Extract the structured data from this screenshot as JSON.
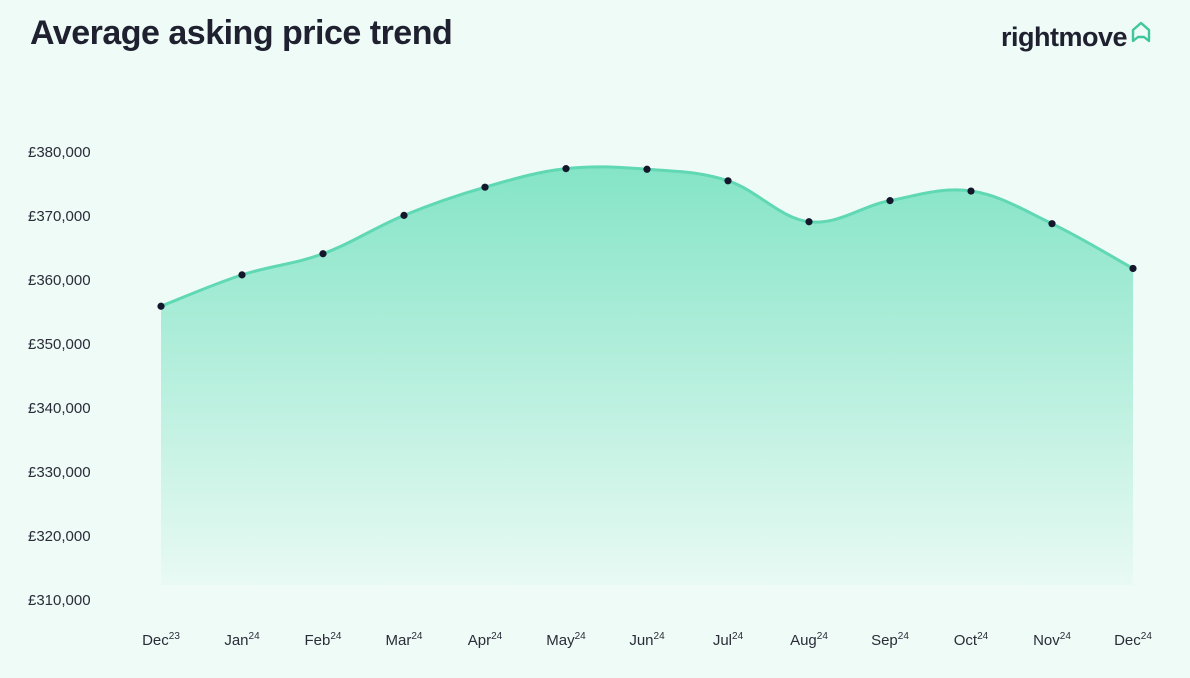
{
  "header": {
    "title": "Average asking price trend",
    "logo_text": "rightmove",
    "logo_icon": "house-outline-icon",
    "logo_color": "#3ec79a"
  },
  "chart_data": {
    "type": "area",
    "title": "Average asking price trend",
    "xlabel": "",
    "ylabel": "",
    "categories": [
      "Dec",
      "Jan",
      "Feb",
      "Mar",
      "Apr",
      "May",
      "Jun",
      "Jul",
      "Aug",
      "Sep",
      "Oct",
      "Nov",
      "Dec"
    ],
    "category_superscripts": [
      "23",
      "24",
      "24",
      "24",
      "24",
      "24",
      "24",
      "24",
      "24",
      "24",
      "24",
      "24",
      "24"
    ],
    "values": [
      355900,
      360800,
      364100,
      370100,
      374500,
      377400,
      377300,
      375500,
      369100,
      372400,
      373900,
      368800,
      361800
    ],
    "yticks": [
      "£310,000",
      "£320,000",
      "£330,000",
      "£340,000",
      "£350,000",
      "£360,000",
      "£370,000",
      "£380,000"
    ],
    "ytick_values": [
      310000,
      320000,
      330000,
      340000,
      350000,
      360000,
      370000,
      380000
    ],
    "ylim": [
      310000,
      380000
    ],
    "grid": false,
    "line_color": "#5fd8b3",
    "fill_color": "#7fe3c4",
    "marker_color": "#14172b"
  }
}
